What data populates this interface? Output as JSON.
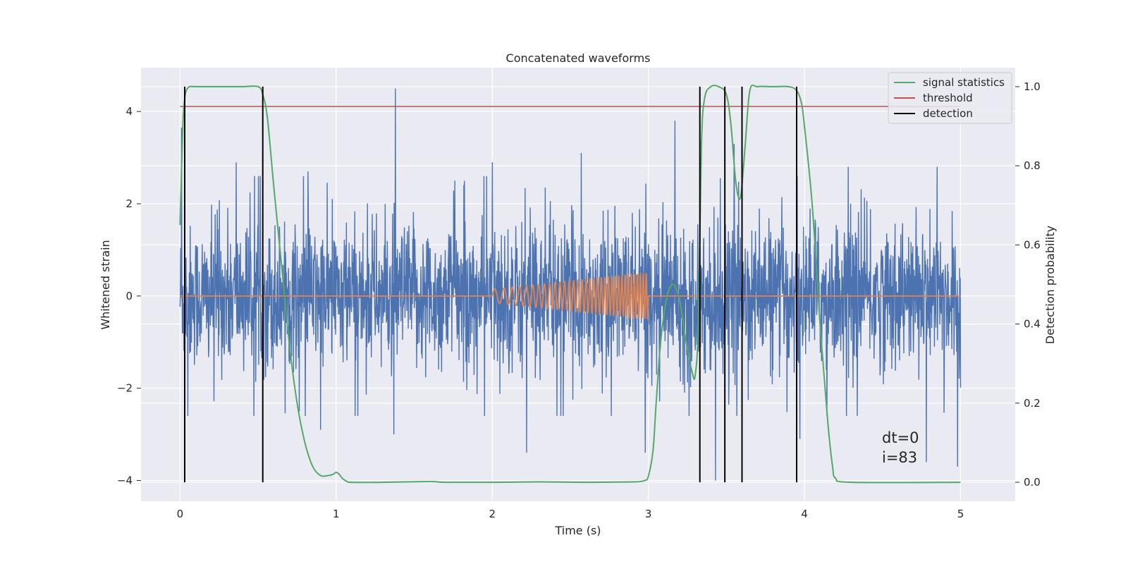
{
  "chart_data": {
    "type": "line",
    "title": "Concatenated waveforms",
    "xlabel": "Time (s)",
    "ylabel": "Whitened strain",
    "ylabel_right": "Detection probability",
    "xlim": [
      -0.25,
      5.35
    ],
    "ylim": [
      -4.45,
      4.95
    ],
    "ylim_right": [
      -0.048,
      1.048
    ],
    "xticks": [
      0,
      1,
      2,
      3,
      4,
      5
    ],
    "xtick_labels": [
      "0",
      "1",
      "2",
      "3",
      "4",
      "5"
    ],
    "yticks": [
      -4,
      -2,
      0,
      2,
      4
    ],
    "ytick_labels": [
      "−4",
      "−2",
      "0",
      "2",
      "4"
    ],
    "yticks_right": [
      0.0,
      0.2,
      0.4,
      0.6,
      0.8,
      1.0
    ],
    "ytick_labels_right": [
      "0.0",
      "0.2",
      "0.4",
      "0.6",
      "0.8",
      "1.0"
    ],
    "grid": true,
    "legend_position": "top-right",
    "legend": [
      "signal statistics",
      "threshold",
      "detection"
    ],
    "annotation": [
      "dt=0",
      "i=83"
    ],
    "colors": {
      "strain": "#4c72b0",
      "waveform": "#dd8452",
      "signal_statistics": "#55a868",
      "threshold": "#c44e52",
      "detection": "#000000",
      "background": "#eaeaf2",
      "grid": "#ffffff"
    },
    "series": [
      {
        "name": "Whitened strain (noise)",
        "axis": "left",
        "x_range": [
          0,
          5
        ],
        "envelope_typical": 1.1,
        "peaks": [
          [
            0.01,
            3.65
          ],
          [
            0.36,
            2.9
          ],
          [
            0.82,
            2.7
          ],
          [
            1.38,
            4.5
          ],
          [
            1.76,
            2.5
          ],
          [
            2.0,
            2.9
          ],
          [
            2.57,
            3.1
          ],
          [
            3.17,
            3.8
          ],
          [
            3.55,
            3.3
          ],
          [
            4.28,
            2.8
          ],
          [
            4.85,
            2.8
          ]
        ],
        "troughs": [
          [
            0.05,
            -2.6
          ],
          [
            0.9,
            -2.9
          ],
          [
            1.37,
            -3.0
          ],
          [
            2.22,
            -3.4
          ],
          [
            2.98,
            -3.4
          ],
          [
            3.43,
            -4.0
          ],
          [
            3.97,
            -3.1
          ],
          [
            4.78,
            -3.6
          ],
          [
            4.98,
            -3.7
          ]
        ]
      },
      {
        "name": "Injected waveform",
        "axis": "left",
        "x": [
          0,
          2.0,
          2.0,
          3.0,
          3.0,
          5.0
        ],
        "amplitude": [
          0,
          0,
          0.15,
          0.5,
          0,
          0
        ],
        "freq_hz": [
          0,
          0,
          15,
          55,
          0,
          0
        ]
      },
      {
        "name": "signal statistics",
        "axis": "right",
        "x": [
          0.0,
          0.01,
          0.02,
          0.03,
          0.04,
          0.06,
          0.1,
          0.2,
          0.3,
          0.4,
          0.5,
          0.53,
          0.56,
          0.6,
          0.65,
          0.7,
          0.75,
          0.8,
          0.85,
          0.9,
          0.95,
          0.98,
          1.0,
          1.02,
          1.04,
          1.07,
          1.1,
          1.3,
          1.6,
          1.7,
          2.0,
          2.3,
          2.6,
          2.9,
          2.95,
          2.98,
          3.0,
          3.03,
          3.05,
          3.08,
          3.12,
          3.16,
          3.2,
          3.24,
          3.28,
          3.3,
          3.32,
          3.34,
          3.36,
          3.4,
          3.45,
          3.5,
          3.53,
          3.56,
          3.59,
          3.62,
          3.65,
          3.7,
          3.8,
          3.9,
          3.95,
          3.98,
          4.0,
          4.05,
          4.1,
          4.15,
          4.18,
          4.2,
          4.3,
          5.0
        ],
        "values": [
          0.65,
          0.8,
          0.92,
          0.97,
          0.99,
          1.0,
          1.0,
          1.0,
          1.0,
          1.0,
          1.0,
          0.98,
          0.92,
          0.75,
          0.55,
          0.35,
          0.2,
          0.1,
          0.04,
          0.017,
          0.017,
          0.02,
          0.025,
          0.02,
          0.01,
          0.002,
          0.0,
          0.0,
          0.002,
          0.0,
          0.0,
          0.001,
          0.0,
          0.001,
          0.002,
          0.005,
          0.015,
          0.08,
          0.2,
          0.36,
          0.47,
          0.5,
          0.46,
          0.36,
          0.28,
          0.27,
          0.4,
          0.85,
          0.97,
          1.0,
          1.0,
          0.98,
          0.9,
          0.76,
          0.72,
          0.85,
          0.99,
          1.0,
          1.0,
          1.0,
          0.99,
          0.96,
          0.9,
          0.7,
          0.4,
          0.15,
          0.04,
          0.01,
          0.0,
          0.0
        ]
      },
      {
        "name": "threshold",
        "axis": "right",
        "x": [
          0,
          5
        ],
        "values": [
          0.95,
          0.95
        ]
      },
      {
        "name": "detection",
        "axis": "right",
        "x": [
          0.03,
          0.53,
          3.33,
          3.49,
          3.6,
          3.95
        ],
        "y_range": [
          0,
          1
        ]
      }
    ]
  }
}
